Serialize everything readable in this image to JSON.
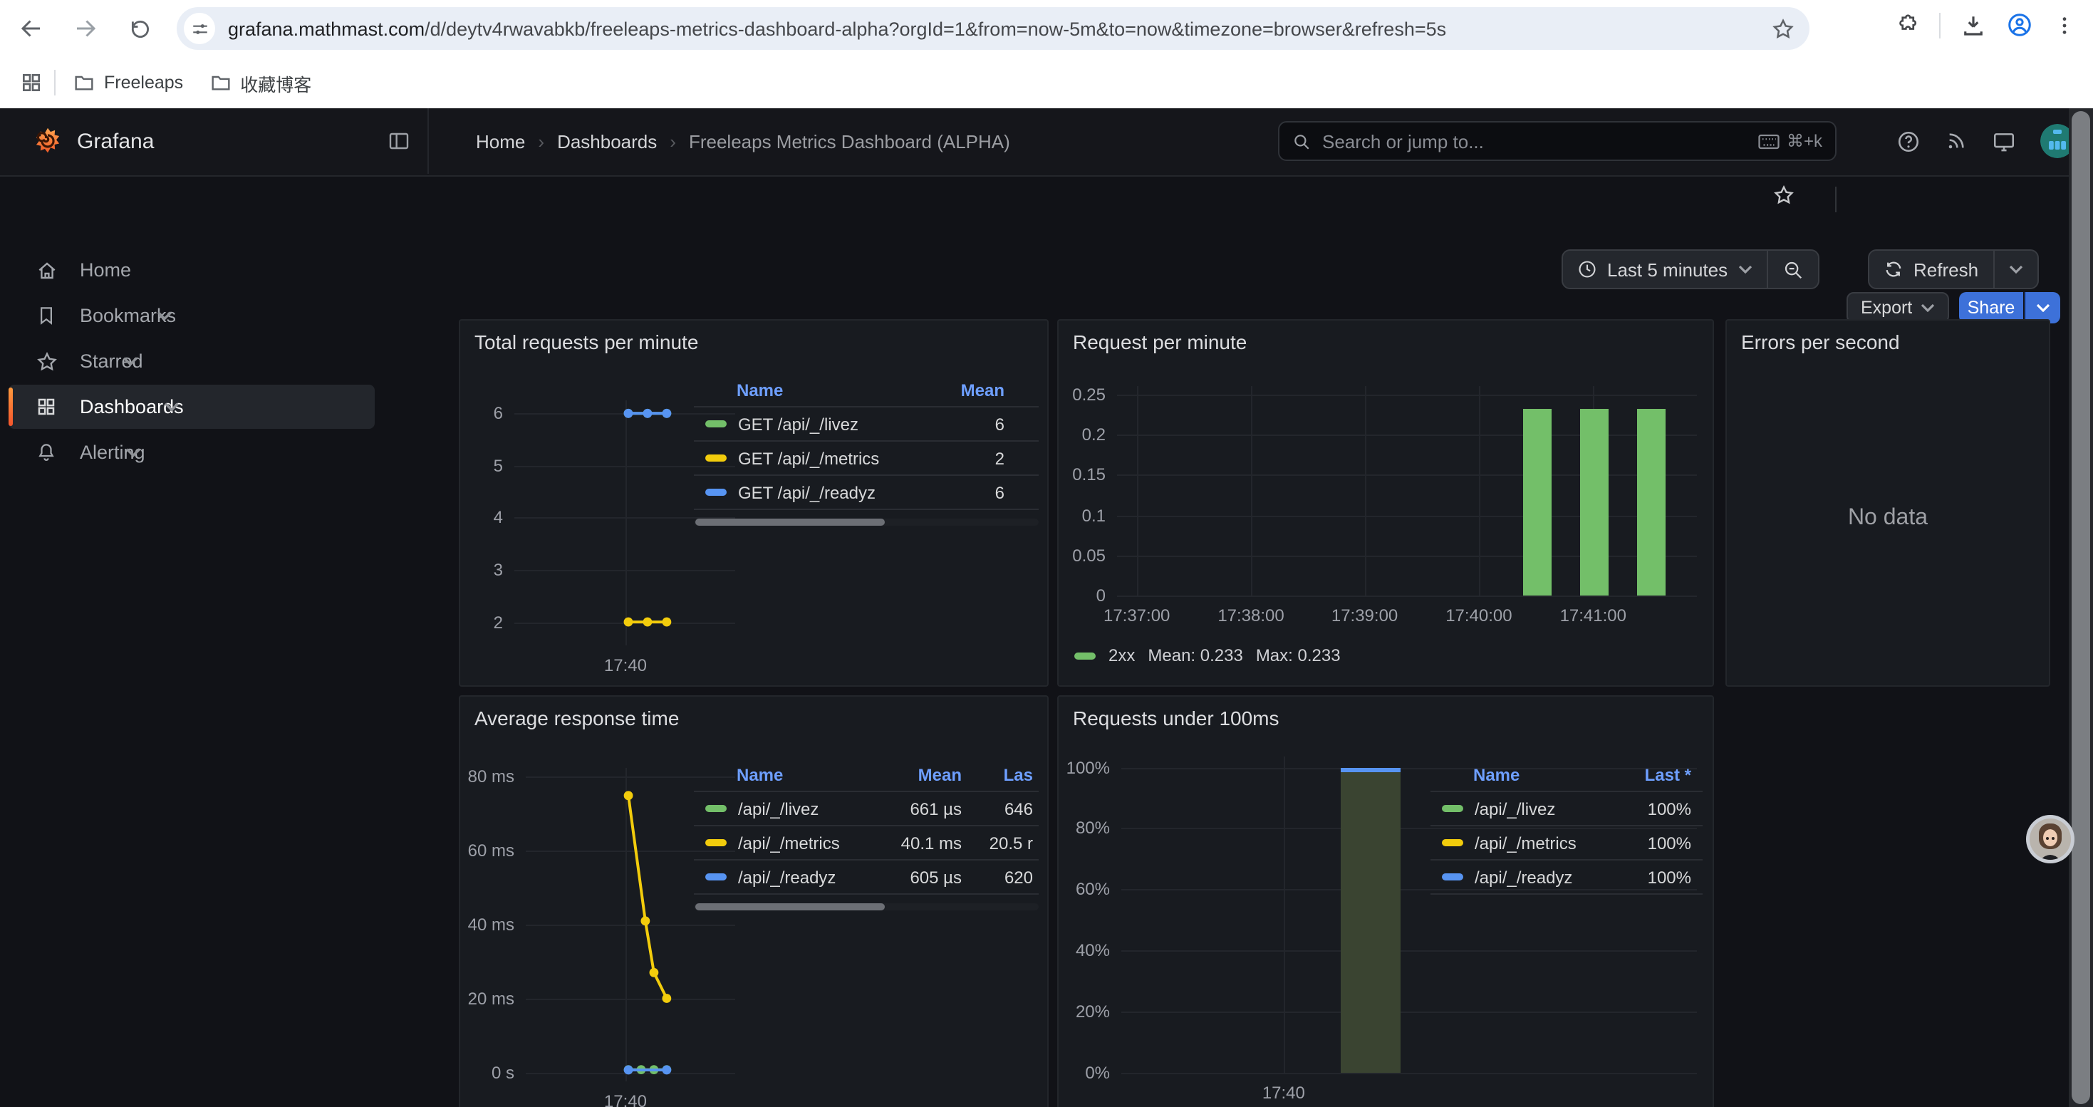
{
  "browser": {
    "url_domain": "grafana.mathmast.com",
    "url_path": "/d/deytv4rwavabkb/freeleaps-metrics-dashboard-alpha?orgId=1&from=now-5m&to=now&timezone=browser&refresh=5s",
    "bookmarks": [
      {
        "label": "Freeleaps"
      },
      {
        "label": "收藏博客"
      }
    ]
  },
  "header": {
    "brand": "Grafana",
    "breadcrumb": [
      "Home",
      "Dashboards",
      "Freeleaps Metrics Dashboard (ALPHA)"
    ],
    "search_placeholder": "Search or jump to...",
    "search_shortcut": "⌘+k",
    "export_label": "Export",
    "share_label": "Share"
  },
  "toolbar": {
    "time_range": "Last 5 minutes",
    "refresh_label": "Refresh"
  },
  "sidebar": {
    "items": [
      {
        "label": "Home"
      },
      {
        "label": "Bookmarks"
      },
      {
        "label": "Starred"
      },
      {
        "label": "Dashboards"
      },
      {
        "label": "Alerting"
      }
    ]
  },
  "colors": {
    "green": "#73bf69",
    "yellow": "#f2cc0c",
    "blue": "#5794f2",
    "accent_orange": "#f4622e",
    "primary_blue": "#3d71d9"
  },
  "panels": [
    {
      "title": "Total requests per minute",
      "legend": {
        "headers": [
          "Name",
          "Mean"
        ],
        "rows": [
          {
            "name": "GET /api/_/livez",
            "color": "#73bf69",
            "mean": "6"
          },
          {
            "name": "GET /api/_/metrics",
            "color": "#f2cc0c",
            "mean": "2"
          },
          {
            "name": "GET /api/_/readyz",
            "color": "#5794f2",
            "mean": "6"
          }
        ]
      },
      "chart_data": {
        "type": "line",
        "ylim": [
          1.55,
          6.25
        ],
        "y_ticks": [
          {
            "v": 2,
            "label": "2"
          },
          {
            "v": 3,
            "label": "3"
          },
          {
            "v": 4,
            "label": "4"
          },
          {
            "v": 5,
            "label": "5"
          },
          {
            "v": 6,
            "label": "6"
          }
        ],
        "x_ticks": [
          {
            "label": "17:40",
            "xf": 0.503
          }
        ],
        "series": [
          {
            "name": "GET /api/_/livez",
            "color": "#73bf69",
            "points": [
              {
                "xf": 0.516,
                "v": 6
              },
              {
                "xf": 0.603,
                "v": 6
              },
              {
                "xf": 0.69,
                "v": 6
              }
            ]
          },
          {
            "name": "GET /api/_/metrics",
            "color": "#f2cc0c",
            "points": [
              {
                "xf": 0.516,
                "v": 2
              },
              {
                "xf": 0.603,
                "v": 2
              },
              {
                "xf": 0.69,
                "v": 2
              }
            ]
          },
          {
            "name": "GET /api/_/readyz",
            "color": "#5794f2",
            "points": [
              {
                "xf": 0.516,
                "v": 6
              },
              {
                "xf": 0.603,
                "v": 6
              },
              {
                "xf": 0.69,
                "v": 6
              }
            ]
          }
        ]
      }
    },
    {
      "title": "Request per minute",
      "legend_line": {
        "name": "2xx",
        "mean": "Mean: 0.233",
        "max": "Max: 0.233",
        "color": "#73bf69"
      },
      "chart_data": {
        "type": "bar",
        "ylim": [
          0,
          0.2606
        ],
        "y_ticks": [
          {
            "v": 0,
            "label": "0"
          },
          {
            "v": 0.05,
            "label": "0.05"
          },
          {
            "v": 0.1,
            "label": "0.1"
          },
          {
            "v": 0.15,
            "label": "0.15"
          },
          {
            "v": 0.2,
            "label": "0.2"
          },
          {
            "v": 0.25,
            "label": "0.25"
          }
        ],
        "x_ticks": [
          {
            "label": "17:37:00",
            "xf": 0.034
          },
          {
            "label": "17:38:00",
            "xf": 0.231
          },
          {
            "label": "17:39:00",
            "xf": 0.427
          },
          {
            "label": "17:40:00",
            "xf": 0.624
          },
          {
            "label": "17:41:00",
            "xf": 0.821
          }
        ],
        "series": [
          {
            "name": "2xx",
            "color": "#73bf69",
            "bar_wf": 0.049,
            "bars": [
              {
                "xf": 0.725,
                "v": 0.233
              },
              {
                "xf": 0.823,
                "v": 0.233
              },
              {
                "xf": 0.921,
                "v": 0.233
              }
            ]
          }
        ]
      }
    },
    {
      "title": "Errors per second",
      "no_data": "No data"
    },
    {
      "title": "Average response time",
      "legend": {
        "headers": [
          "Name",
          "Mean",
          "Las"
        ],
        "rows": [
          {
            "name": "/api/_/livez",
            "color": "#73bf69",
            "mean": "661 µs",
            "last": "646"
          },
          {
            "name": "/api/_/metrics",
            "color": "#f2cc0c",
            "mean": "40.1 ms",
            "last": "20.5 r"
          },
          {
            "name": "/api/_/readyz",
            "color": "#5794f2",
            "mean": "605 µs",
            "last": "620"
          }
        ]
      },
      "chart_data": {
        "type": "line",
        "ylim": [
          -2.5,
          82.5
        ],
        "y_ticks": [
          {
            "v": 0,
            "label": "0 s"
          },
          {
            "v": 20,
            "label": "20 ms"
          },
          {
            "v": 40,
            "label": "40 ms"
          },
          {
            "v": 60,
            "label": "60 ms"
          },
          {
            "v": 80,
            "label": "80 ms"
          }
        ],
        "x_ticks": [
          {
            "label": "17:40",
            "xf": 0.476
          }
        ],
        "series": [
          {
            "name": "/api/_/livez",
            "color": "#73bf69",
            "points": [
              {
                "xf": 0.49,
                "v": 0.66
              },
              {
                "xf": 0.551,
                "v": 0.66
              },
              {
                "xf": 0.612,
                "v": 0.66
              },
              {
                "xf": 0.673,
                "v": 0.66
              }
            ]
          },
          {
            "name": "/api/_/readyz",
            "color": "#5794f2",
            "points": [
              {
                "xf": 0.49,
                "v": 0.6
              },
              {
                "xf": 0.551,
                "v": 0.6,
                "dot": false
              },
              {
                "xf": 0.612,
                "v": 0.6,
                "dot": false
              },
              {
                "xf": 0.673,
                "v": 0.6
              }
            ]
          },
          {
            "name": "/api/_/metrics",
            "color": "#f2cc0c",
            "points": [
              {
                "xf": 0.49,
                "v": 75
              },
              {
                "xf": 0.571,
                "v": 41
              },
              {
                "xf": 0.612,
                "v": 27
              },
              {
                "xf": 0.673,
                "v": 20
              }
            ]
          }
        ]
      }
    },
    {
      "title": "Requests under 100ms",
      "legend": {
        "headers": [
          "Name",
          "Last *"
        ],
        "rows": [
          {
            "name": "/api/_/livez",
            "color": "#73bf69",
            "last": "100%"
          },
          {
            "name": "/api/_/metrics",
            "color": "#f2cc0c",
            "last": "100%"
          },
          {
            "name": "/api/_/readyz",
            "color": "#5794f2",
            "last": "100%"
          }
        ]
      },
      "chart_data": {
        "type": "bar",
        "ylim": [
          0,
          103.5
        ],
        "y_ticks": [
          {
            "v": 0,
            "label": "0%"
          },
          {
            "v": 20,
            "label": "20%"
          },
          {
            "v": 40,
            "label": "40%"
          },
          {
            "v": 60,
            "label": "60%"
          },
          {
            "v": 80,
            "label": "80%"
          },
          {
            "v": 100,
            "label": "100%"
          }
        ],
        "x_ticks": [
          {
            "label": "17:40",
            "xf": 0.282
          }
        ],
        "series": [
          {
            "name": "under 100ms",
            "color": "#5794f2",
            "fill": "#3a4431",
            "cap": true,
            "bar_wf": 0.104,
            "bars": [
              {
                "xf": 0.433,
                "v": 100
              }
            ]
          }
        ]
      }
    }
  ]
}
